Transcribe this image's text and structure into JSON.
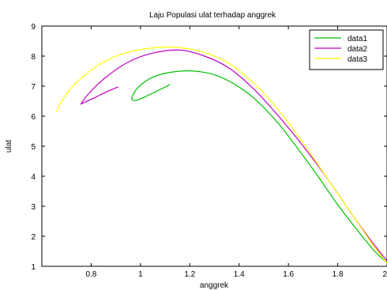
{
  "chart_data": {
    "type": "line",
    "title": "Laju Populasi ulat terhadap anggrek",
    "xlabel": "anggrek",
    "ylabel": "ulat",
    "xlim": [
      0.6,
      2.0
    ],
    "ylim": [
      1,
      9
    ],
    "xticks": [
      "0.8",
      "1",
      "1.2",
      "1.4",
      "1.6",
      "1.8",
      "2"
    ],
    "yticks": [
      "1",
      "2",
      "3",
      "4",
      "5",
      "6",
      "7",
      "8",
      "9"
    ],
    "grid": false,
    "legend_position": "top-right",
    "series": [
      {
        "name": "data1",
        "color": "#00c000",
        "x": [
          1.12,
          1.07,
          1.02,
          0.98,
          0.965,
          0.99,
          1.05,
          1.13,
          1.22,
          1.31,
          1.4,
          1.48,
          1.56,
          1.64,
          1.72,
          1.8,
          1.88,
          1.95,
          2.0
        ],
        "y": [
          7.05,
          6.85,
          6.65,
          6.52,
          6.6,
          6.95,
          7.3,
          7.47,
          7.5,
          7.35,
          6.97,
          6.45,
          5.75,
          4.9,
          4.0,
          3.05,
          2.2,
          1.5,
          1.12
        ]
      },
      {
        "name": "data2",
        "color": "#c000c0",
        "x": [
          0.91,
          0.86,
          0.81,
          0.77,
          0.76,
          0.79,
          0.86,
          0.95,
          1.05,
          1.16,
          1.26,
          1.36,
          1.46,
          1.56,
          1.66,
          1.76,
          1.86,
          1.94,
          2.0
        ],
        "y": [
          6.98,
          6.8,
          6.6,
          6.45,
          6.42,
          6.75,
          7.3,
          7.8,
          8.1,
          8.2,
          8.0,
          7.6,
          6.9,
          6.0,
          5.0,
          3.9,
          2.7,
          1.8,
          1.18
        ]
      },
      {
        "name": "data3",
        "color": "#ffff00",
        "x": [
          0.66,
          0.68,
          0.72,
          0.78,
          0.86,
          0.96,
          1.06,
          1.16,
          1.26,
          1.36,
          1.46,
          1.56,
          1.66,
          1.76,
          1.86,
          1.94,
          2.0
        ],
        "y": [
          6.15,
          6.5,
          6.95,
          7.4,
          7.85,
          8.15,
          8.28,
          8.28,
          8.12,
          7.75,
          7.1,
          6.2,
          5.1,
          3.9,
          2.7,
          1.75,
          1.1
        ]
      }
    ]
  }
}
